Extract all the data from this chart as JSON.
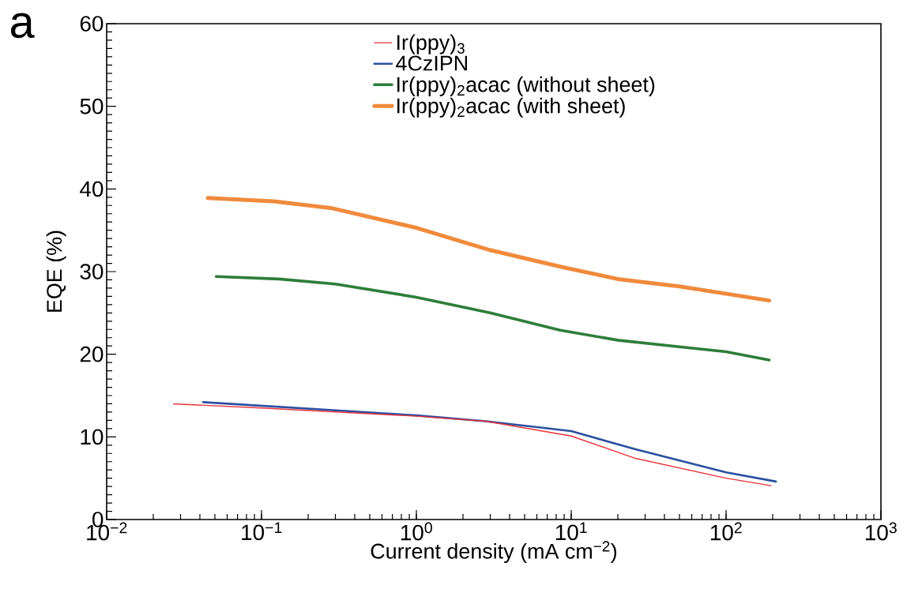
{
  "chart_data": {
    "type": "line",
    "xlabel": "Current density (mA cm$^{−2}$)",
    "ylabel": "EQE (%)",
    "log": "x",
    "legend": "top",
    "marker": "none",
    "annotations": [
      "a"
    ],
    "xlim": [
      0.01,
      1000
    ],
    "xticks": [
      {
        "value": 0.01,
        "label": "10$^{−2}$"
      },
      {
        "value": 0.1,
        "label": "10$^{−1}$"
      },
      {
        "value": 1,
        "label": "10$^{0}$"
      },
      {
        "value": 10,
        "label": "10$^{1}$"
      },
      {
        "value": 100,
        "label": "10$^{2}$"
      },
      {
        "value": 1000,
        "label": "10$^{3}$"
      }
    ],
    "ylim": [
      0,
      60
    ],
    "yticks": [
      0,
      10,
      20,
      30,
      40,
      50,
      60
    ],
    "series": [
      {
        "name": "Ir(ppy)$_{3}$",
        "color": "#e8333a",
        "x": [
          0.027,
          0.1,
          1,
          2.8,
          10,
          26,
          100,
          195
        ],
        "values": [
          14.0,
          13.5,
          12.5,
          11.9,
          10.1,
          7.4,
          5.0,
          4.1
        ]
      },
      {
        "name": "4CzIPN",
        "color": "#2a4fa0",
        "x": [
          0.042,
          1,
          2.8,
          10,
          26,
          100,
          210
        ],
        "values": [
          14.2,
          12.6,
          11.9,
          10.7,
          8.5,
          5.7,
          4.6
        ]
      },
      {
        "name": "Ir(ppy)$_{2}$acac (without sheet)",
        "color": "#2e7d3a",
        "x": [
          0.051,
          0.13,
          0.3,
          1,
          3,
          8.5,
          20,
          50,
          100,
          190
        ],
        "values": [
          29.4,
          29.1,
          28.5,
          26.9,
          25.0,
          22.9,
          21.7,
          20.9,
          20.3,
          19.3
        ]
      },
      {
        "name": "Ir(ppy)$_{2}$acac (with sheet)",
        "color": "#f08a3c",
        "x": [
          0.045,
          0.12,
          0.28,
          1,
          3,
          8.5,
          20,
          50,
          190
        ],
        "values": [
          38.9,
          38.5,
          37.7,
          35.3,
          32.6,
          30.6,
          29.1,
          28.2,
          26.5
        ]
      }
    ]
  }
}
